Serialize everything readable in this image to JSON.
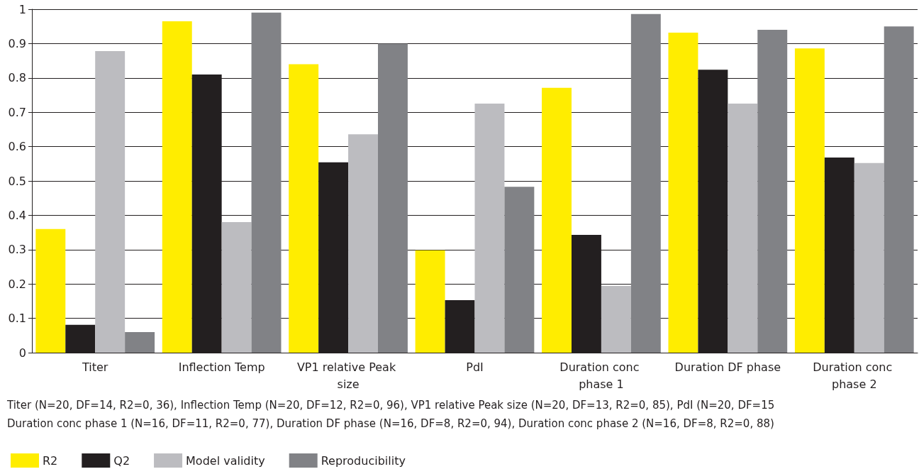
{
  "chart_data": {
    "type": "bar",
    "categories": [
      "Titer",
      "Inflection Temp",
      "VP1 relative Peak size",
      "PdI",
      "Duration conc phase 1",
      "Duration DF phase",
      "Duration conc phase 2"
    ],
    "series": [
      {
        "name": "R2",
        "color": "#ffed00",
        "values": [
          0.36,
          0.965,
          0.84,
          0.298,
          0.771,
          0.932,
          0.886
        ]
      },
      {
        "name": "Q2",
        "color": "#231f20",
        "values": [
          0.081,
          0.81,
          0.554,
          0.153,
          0.343,
          0.824,
          0.568
        ]
      },
      {
        "name": "Model validity",
        "color": "#bcbcc0",
        "values": [
          0.878,
          0.38,
          0.636,
          0.725,
          0.194,
          0.725,
          0.552
        ]
      },
      {
        "name": "Reproducibility",
        "color": "#818286",
        "values": [
          0.06,
          0.99,
          0.9,
          0.483,
          0.986,
          0.94,
          0.95
        ]
      }
    ],
    "ylim": [
      0,
      1
    ],
    "yticks": [
      0,
      0.1,
      0.2,
      0.3,
      0.4,
      0.5,
      0.6,
      0.7,
      0.8,
      0.9,
      1
    ],
    "grid": "y",
    "legend": "bottom left",
    "annotations": [
      "Titer (N=20, DF=14, R2=0, 36), Inflection Temp (N=20, DF=12, R2=0, 96), VP1 relative Peak size (N=20, DF=13, R2=0, 85), PdI (N=20, DF=15",
      "Duration conc phase 1 (N=16, DF=11, R2=0, 77), Duration DF phase (N=16, DF=8, R2=0, 94), Duration conc phase 2 (N=16, DF=8, R2=0, 88)"
    ]
  }
}
